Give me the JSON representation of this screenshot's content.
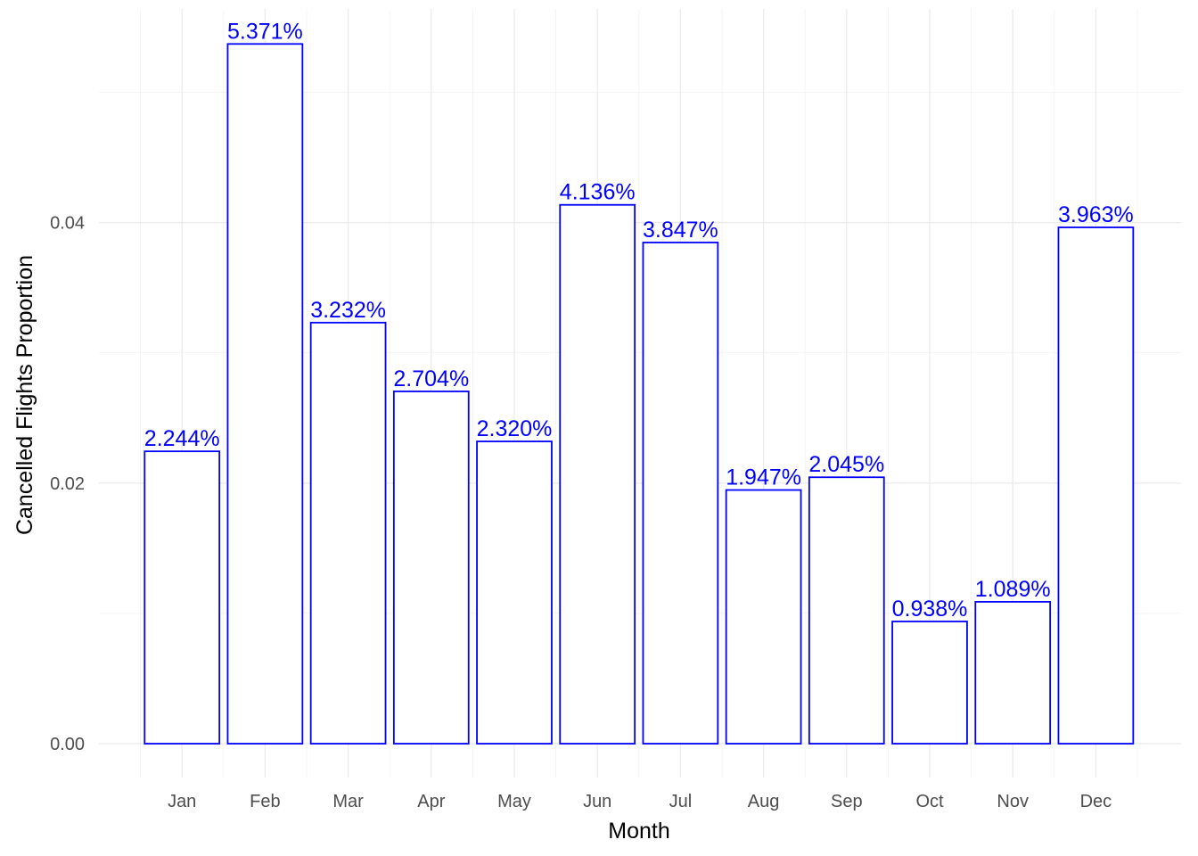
{
  "chart_data": {
    "type": "bar",
    "categories": [
      "Jan",
      "Feb",
      "Mar",
      "Apr",
      "May",
      "Jun",
      "Jul",
      "Aug",
      "Sep",
      "Oct",
      "Nov",
      "Dec"
    ],
    "values": [
      0.02244,
      0.05371,
      0.03232,
      0.02704,
      0.0232,
      0.04136,
      0.03847,
      0.01947,
      0.02045,
      0.00938,
      0.01089,
      0.03963
    ],
    "data_labels": [
      "2.244%",
      "5.371%",
      "3.232%",
      "2.704%",
      "2.320%",
      "4.136%",
      "3.847%",
      "1.947%",
      "2.045%",
      "0.938%",
      "1.089%",
      "3.963%"
    ],
    "title": "",
    "xlabel": "Month",
    "ylabel": "Cancelled Flights Proportion",
    "yticks": [
      0,
      0.02,
      0.04
    ],
    "ytick_labels": [
      "0.00",
      "0.02",
      "0.04"
    ],
    "ylim": [
      -0.0026,
      0.0564
    ],
    "grid": true,
    "legend": "none",
    "bar_fill": "#ffffff",
    "bar_outline": "#0000ff",
    "label_color": "#0000ff"
  }
}
